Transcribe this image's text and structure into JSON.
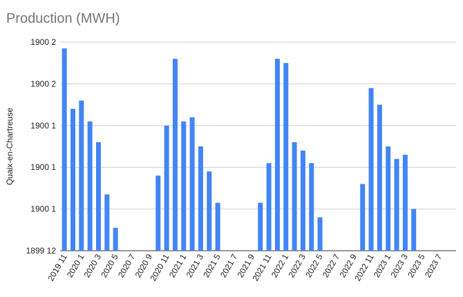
{
  "chart_data": {
    "type": "bar",
    "title": "Production (MWH)",
    "ylabel": "Quaix-en-Chartreuse",
    "xlabel": "",
    "y_tick_labels": [
      "1899 12",
      "1900 1",
      "1900 1",
      "1900 1",
      "1900 2",
      "1900 2"
    ],
    "ylim": [
      0,
      5
    ],
    "grid": true,
    "legend": "none",
    "bar_color": "#4285f4",
    "categories": [
      "2019 11",
      "2019 12",
      "2020 1",
      "2020 2",
      "2020 3",
      "2020 4",
      "2020 5",
      "2020 6",
      "2020 7",
      "2020 8",
      "2020 9",
      "2020 10",
      "2020 11",
      "2020 12",
      "2021 1",
      "2021 2",
      "2021 3",
      "2021 4",
      "2021 5",
      "2021 6",
      "2021 7",
      "2021 8",
      "2021 9",
      "2021 10",
      "2021 11",
      "2021 12",
      "2022 1",
      "2022 2",
      "2022 3",
      "2022 4",
      "2022 5",
      "2022 6",
      "2022 7",
      "2022 8",
      "2022 9",
      "2022 10",
      "2022 11",
      "2022 12",
      "2023 1",
      "2023 2",
      "2023 3",
      "2023 4",
      "2023 5",
      "2023 6",
      "2023 7"
    ],
    "x_tick_labels": [
      "2019 11",
      "2020 1",
      "2020 3",
      "2020 5",
      "2020 7",
      "2020 9",
      "2020 11",
      "2021 1",
      "2021 3",
      "2021 5",
      "2021 7",
      "2021 9",
      "2021 11",
      "2022 1",
      "2022 3",
      "2022 5",
      "2022 7",
      "2022 9",
      "2022 11",
      "2023 1",
      "2023 3",
      "2023 5",
      "2023 7"
    ],
    "values": [
      4.85,
      3.4,
      3.6,
      3.1,
      2.6,
      1.35,
      0.55,
      null,
      null,
      null,
      null,
      1.8,
      3.0,
      4.6,
      3.1,
      3.2,
      2.5,
      1.9,
      1.15,
      null,
      null,
      null,
      null,
      1.15,
      2.1,
      4.6,
      4.5,
      2.6,
      2.4,
      2.1,
      0.8,
      null,
      null,
      null,
      null,
      1.6,
      3.9,
      3.5,
      2.5,
      2.2,
      2.3,
      1.0,
      null,
      null,
      null
    ]
  }
}
